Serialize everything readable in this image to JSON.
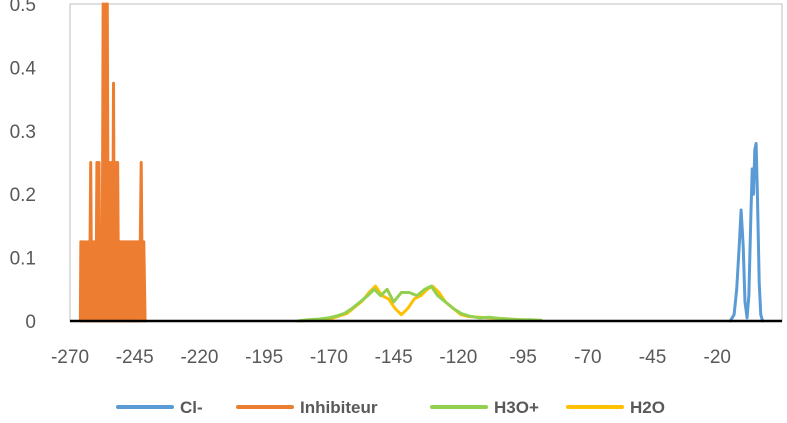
{
  "chart_data": {
    "type": "line",
    "title": "",
    "xlabel": "",
    "ylabel": "",
    "xlim": [
      -270,
      5
    ],
    "ylim": [
      0,
      0.5
    ],
    "x_ticks": [
      -270,
      -245,
      -220,
      -195,
      -170,
      -145,
      -120,
      -95,
      -70,
      -45,
      -20
    ],
    "x_tick_labels": [
      "-270",
      "-245",
      "-220",
      "-195",
      "-170",
      "-145",
      "-120",
      "-95",
      "-70",
      "-45",
      "-20"
    ],
    "y_ticks": [
      0,
      0.1,
      0.2,
      0.3,
      0.4,
      0.5
    ],
    "y_tick_labels": [
      "0",
      "0.1",
      "0.2",
      "0.3",
      "0.4",
      "0.5"
    ],
    "grid": false,
    "legend_position": "bottom",
    "series": [
      {
        "name": "Cl-",
        "color": "#5B9BD5",
        "points": [
          [
            -15,
            0
          ],
          [
            -13.5,
            0.01
          ],
          [
            -12.5,
            0.05
          ],
          [
            -11.5,
            0.12
          ],
          [
            -10.8,
            0.175
          ],
          [
            -10,
            0.12
          ],
          [
            -9.3,
            0.03
          ],
          [
            -8.5,
            0.005
          ],
          [
            -7.8,
            0.04
          ],
          [
            -7,
            0.17
          ],
          [
            -6.5,
            0.24
          ],
          [
            -6,
            0.2
          ],
          [
            -5.5,
            0.27
          ],
          [
            -5,
            0.28
          ],
          [
            -4.5,
            0.2
          ],
          [
            -3.8,
            0.06
          ],
          [
            -3.2,
            0.01
          ],
          [
            -2.5,
            0
          ]
        ]
      },
      {
        "name": "Inhibiteur",
        "color": "#ED7D31",
        "points": [
          [
            -266,
            0
          ],
          [
            -265.8,
            0.125
          ],
          [
            -265.5,
            0
          ],
          [
            -265,
            0.125
          ],
          [
            -264.5,
            0
          ],
          [
            -264,
            0.125
          ],
          [
            -263.5,
            0
          ],
          [
            -263,
            0.125
          ],
          [
            -262.5,
            0
          ],
          [
            -262,
            0.25
          ],
          [
            -261.6,
            0
          ],
          [
            -261.2,
            0.125
          ],
          [
            -260.8,
            0
          ],
          [
            -260.4,
            0.125
          ],
          [
            -260,
            0
          ],
          [
            -259.6,
            0.25
          ],
          [
            -259.2,
            0
          ],
          [
            -258.8,
            0.25
          ],
          [
            -258.4,
            0
          ],
          [
            -258,
            0.125
          ],
          [
            -257.6,
            0
          ],
          [
            -257.2,
            0.5
          ],
          [
            -256.8,
            0
          ],
          [
            -256.4,
            0.5
          ],
          [
            -256,
            0
          ],
          [
            -255.6,
            0.5
          ],
          [
            -255.2,
            0
          ],
          [
            -254.8,
            0.25
          ],
          [
            -254.4,
            0
          ],
          [
            -254,
            0.25
          ],
          [
            -253.6,
            0
          ],
          [
            -253.2,
            0.375
          ],
          [
            -252.8,
            0
          ],
          [
            -252.4,
            0.25
          ],
          [
            -252,
            0
          ],
          [
            -251.6,
            0.25
          ],
          [
            -251.2,
            0
          ],
          [
            -250.8,
            0.125
          ],
          [
            -250.4,
            0
          ],
          [
            -250,
            0.125
          ],
          [
            -249.6,
            0
          ],
          [
            -249.2,
            0.125
          ],
          [
            -248.8,
            0
          ],
          [
            -248.4,
            0.125
          ],
          [
            -248,
            0
          ],
          [
            -247.6,
            0.125
          ],
          [
            -247.2,
            0
          ],
          [
            -246.8,
            0.125
          ],
          [
            -246.4,
            0
          ],
          [
            -246,
            0.125
          ],
          [
            -245.6,
            0
          ],
          [
            -245.2,
            0.125
          ],
          [
            -244.8,
            0
          ],
          [
            -244.4,
            0.125
          ],
          [
            -244,
            0
          ],
          [
            -243.6,
            0.125
          ],
          [
            -243.2,
            0
          ],
          [
            -242.5,
            0.25
          ],
          [
            -242,
            0
          ],
          [
            -241.5,
            0.125
          ],
          [
            -241,
            0
          ]
        ]
      },
      {
        "name": "H3O+",
        "color": "#92D050",
        "points": [
          [
            -182,
            0
          ],
          [
            -178,
            0.002
          ],
          [
            -174,
            0.003
          ],
          [
            -170,
            0.005
          ],
          [
            -167,
            0.008
          ],
          [
            -164,
            0.012
          ],
          [
            -161,
            0.02
          ],
          [
            -158,
            0.03
          ],
          [
            -155,
            0.04
          ],
          [
            -152.5,
            0.05
          ],
          [
            -150,
            0.04
          ],
          [
            -147.5,
            0.05
          ],
          [
            -145,
            0.03
          ],
          [
            -142,
            0.045
          ],
          [
            -139,
            0.045
          ],
          [
            -136,
            0.04
          ],
          [
            -133,
            0.05
          ],
          [
            -130.5,
            0.055
          ],
          [
            -128,
            0.04
          ],
          [
            -125,
            0.03
          ],
          [
            -122,
            0.02
          ],
          [
            -119,
            0.012
          ],
          [
            -116,
            0.008
          ],
          [
            -112,
            0.005
          ],
          [
            -108,
            0.006
          ],
          [
            -104,
            0.004
          ],
          [
            -100,
            0.003
          ],
          [
            -96,
            0.002
          ],
          [
            -92,
            0.002
          ],
          [
            -88,
            0.001
          ]
        ]
      },
      {
        "name": "H2O",
        "color": "#FFC000",
        "points": [
          [
            -181,
            0
          ],
          [
            -177,
            0.001
          ],
          [
            -173,
            0.003
          ],
          [
            -169,
            0.004
          ],
          [
            -166,
            0.008
          ],
          [
            -163,
            0.012
          ],
          [
            -160,
            0.022
          ],
          [
            -157,
            0.032
          ],
          [
            -154.5,
            0.045
          ],
          [
            -152,
            0.055
          ],
          [
            -149.5,
            0.04
          ],
          [
            -147,
            0.035
          ],
          [
            -144.5,
            0.02
          ],
          [
            -142,
            0.01
          ],
          [
            -139.5,
            0.02
          ],
          [
            -137,
            0.035
          ],
          [
            -134.5,
            0.04
          ],
          [
            -132,
            0.05
          ],
          [
            -130,
            0.055
          ],
          [
            -127.5,
            0.045
          ],
          [
            -125,
            0.03
          ],
          [
            -122,
            0.02
          ],
          [
            -119,
            0.01
          ],
          [
            -116,
            0.007
          ],
          [
            -112,
            0.006
          ],
          [
            -108,
            0.005
          ],
          [
            -104,
            0.004
          ],
          [
            -100,
            0.003
          ],
          [
            -96,
            0.002
          ],
          [
            -92,
            0.001
          ],
          [
            -88,
            0.001
          ]
        ]
      }
    ]
  }
}
